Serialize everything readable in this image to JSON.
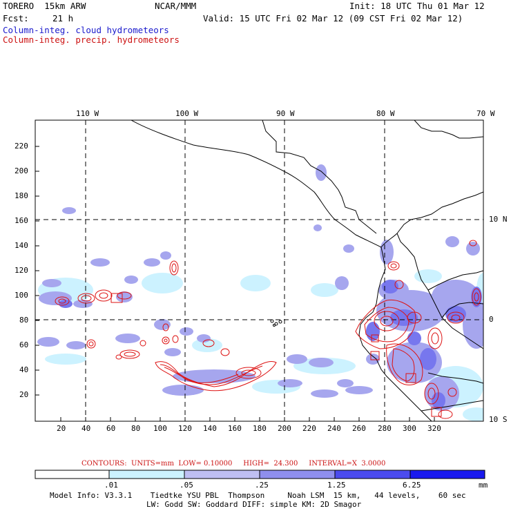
{
  "header": {
    "model": "TORERO  15km ARW",
    "org": "NCAR/MMM",
    "init": "Init: 18 UTC Thu 01 Mar 12",
    "fcst_label": "Fcst:",
    "fcst_value": "21 h",
    "valid": "Valid: 15 UTC Fri 02 Mar 12 (09 CST Fri 02 Mar 12)",
    "field1": "Column-integ. cloud hydrometeors",
    "field2": "Column-integ. precip. hydrometeors"
  },
  "axes": {
    "lon_labels": [
      "110 W",
      "100 W",
      "90 W",
      "80 W",
      "70 W"
    ],
    "lat_labels": [
      "10 N",
      "0",
      "10 S"
    ],
    "x_ticks": [
      "20",
      "40",
      "60",
      "80",
      "100",
      "120",
      "140",
      "160",
      "180",
      "200",
      "220",
      "240",
      "260",
      "280",
      "300",
      "320"
    ],
    "y_ticks": [
      "20",
      "40",
      "60",
      "80",
      "100",
      "120",
      "140",
      "160",
      "180",
      "200",
      "220"
    ]
  },
  "contours": {
    "text": "CONTOURS:  UNITS=mm  LOW= 0.10000     HIGH=  24.300     INTERVAL=X  3.0000"
  },
  "colorbar": {
    "labels": [
      ".01",
      ".05",
      ".25",
      "1.25",
      "6.25"
    ],
    "unit": "mm",
    "colors": [
      "#ffffff",
      "#ccf2ff",
      "#bfbff2",
      "#9999ee",
      "#6f6fee",
      "#4444ee",
      "#1a1aee"
    ]
  },
  "footer": {
    "line1": "Model Info: V3.3.1    Tiedtke YSU PBL  Thompson     Noah LSM  15 km,   44 levels,    60 sec",
    "line2": "LW: Godd SW: Goddard DIFF: simple KM: 2D Smagor"
  },
  "colors": {
    "cloud_light": "#ccf2ff",
    "cloud_mid": "#9999ee",
    "cloud_dark": "#6f6fee",
    "precip_contour": "#dd1111"
  }
}
